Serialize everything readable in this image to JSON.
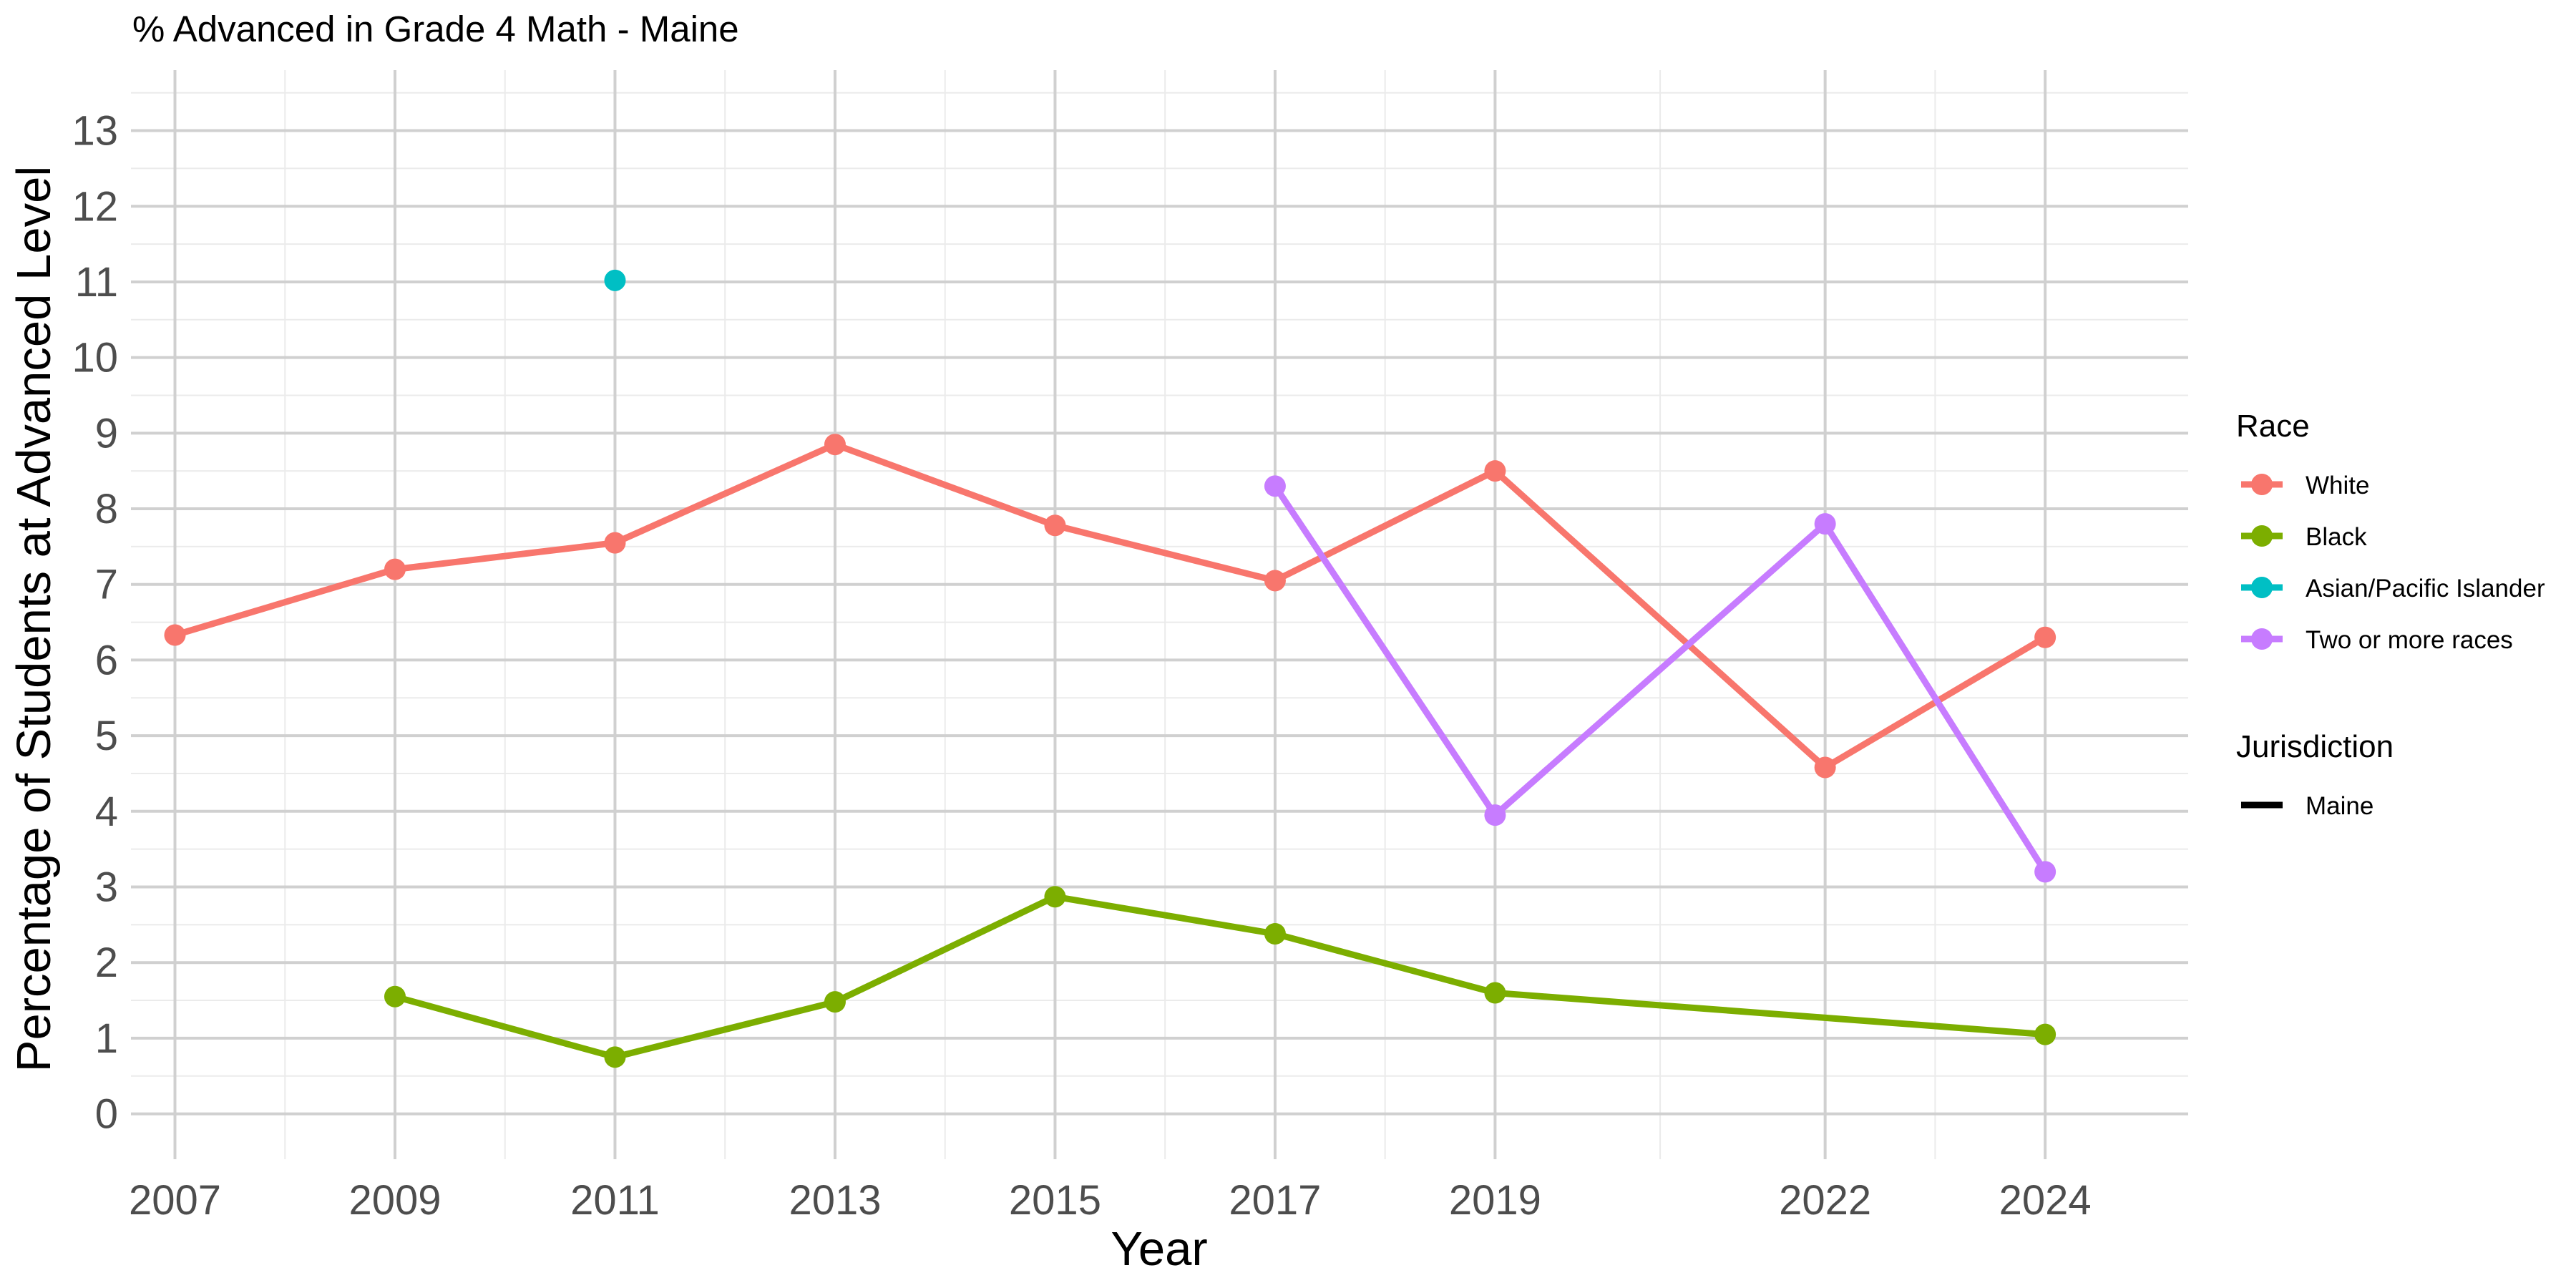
{
  "chart_data": {
    "type": "line",
    "title": "% Advanced in Grade 4 Math - Maine",
    "xlabel": "Year",
    "ylabel": "Percentage of Students at Advanced Level",
    "xlim": [
      2006.6,
      2025.3
    ],
    "ylim": [
      -0.6,
      13.8
    ],
    "x_ticks": [
      2007,
      2009,
      2011,
      2013,
      2015,
      2017,
      2019,
      2022,
      2024
    ],
    "y_ticks": [
      0,
      1,
      2,
      3,
      4,
      5,
      6,
      7,
      8,
      9,
      10,
      11,
      12,
      13
    ],
    "grid": true,
    "legend_position": "right",
    "series": [
      {
        "name": "White",
        "color": "#F8766D",
        "points": [
          {
            "x": 2007,
            "y": 6.33
          },
          {
            "x": 2009,
            "y": 7.2
          },
          {
            "x": 2011,
            "y": 7.55
          },
          {
            "x": 2013,
            "y": 8.85
          },
          {
            "x": 2015,
            "y": 7.78
          },
          {
            "x": 2017,
            "y": 7.05
          },
          {
            "x": 2019,
            "y": 8.5
          },
          {
            "x": 2022,
            "y": 4.58
          },
          {
            "x": 2024,
            "y": 6.3
          }
        ]
      },
      {
        "name": "Black",
        "color": "#7CAE00",
        "points": [
          {
            "x": 2009,
            "y": 1.55
          },
          {
            "x": 2011,
            "y": 0.75
          },
          {
            "x": 2013,
            "y": 1.48
          },
          {
            "x": 2015,
            "y": 2.87
          },
          {
            "x": 2017,
            "y": 2.38
          },
          {
            "x": 2019,
            "y": 1.6
          },
          {
            "x": 2024,
            "y": 1.05
          }
        ]
      },
      {
        "name": "Asian/Pacific Islander",
        "color": "#00BFC4",
        "points": [
          {
            "x": 2011,
            "y": 11.02
          }
        ]
      },
      {
        "name": "Two or more races",
        "color": "#C77CFF",
        "points": [
          {
            "x": 2017,
            "y": 8.3
          },
          {
            "x": 2019,
            "y": 3.95
          },
          {
            "x": 2022,
            "y": 7.8
          },
          {
            "x": 2024,
            "y": 3.2
          }
        ]
      }
    ],
    "legend": {
      "race_title": "Race",
      "jurisdiction_title": "Jurisdiction",
      "jurisdiction_items": [
        {
          "label": "Maine",
          "color": "#000000"
        }
      ]
    }
  }
}
